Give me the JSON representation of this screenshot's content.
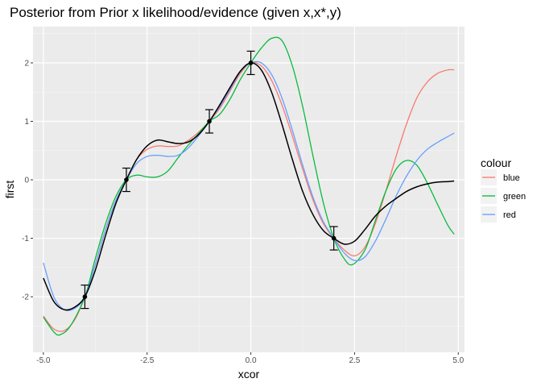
{
  "chart_data": {
    "type": "line",
    "title": "Posterior from Prior x likelihood/evidence (given x,x*,y)",
    "xlabel": "xcor",
    "ylabel": "first",
    "xlim": [
      -5.25,
      5.15
    ],
    "ylim": [
      -2.95,
      2.62
    ],
    "x_ticks": [
      -5.0,
      -2.5,
      0.0,
      2.5,
      5.0
    ],
    "x_tick_labels": [
      "-5.0",
      "-2.5",
      "0.0",
      "2.5",
      "5.0"
    ],
    "y_ticks": [
      -2,
      -1,
      0,
      1,
      2
    ],
    "y_tick_labels": [
      "-2",
      "-1",
      "0",
      "1",
      "2"
    ],
    "grid": true,
    "legend": {
      "title": "colour",
      "position": "right",
      "entries": [
        {
          "label": "blue",
          "color": "#F8766D"
        },
        {
          "label": "green",
          "color": "#00BA38"
        },
        {
          "label": "red",
          "color": "#619CFF"
        }
      ]
    },
    "series": [
      {
        "name": "blue",
        "color": "#F8766D",
        "points": [
          [
            -5.0,
            -2.33
          ],
          [
            -4.75,
            -2.55
          ],
          [
            -4.5,
            -2.58
          ],
          [
            -4.25,
            -2.4
          ],
          [
            -4.0,
            -2.0
          ],
          [
            -3.75,
            -1.45
          ],
          [
            -3.5,
            -0.85
          ],
          [
            -3.25,
            -0.35
          ],
          [
            -3.0,
            0.0
          ],
          [
            -2.75,
            0.35
          ],
          [
            -2.5,
            0.52
          ],
          [
            -2.25,
            0.58
          ],
          [
            -2.0,
            0.57
          ],
          [
            -1.75,
            0.58
          ],
          [
            -1.5,
            0.68
          ],
          [
            -1.25,
            0.82
          ],
          [
            -1.0,
            1.0
          ],
          [
            -0.75,
            1.22
          ],
          [
            -0.5,
            1.52
          ],
          [
            -0.25,
            1.82
          ],
          [
            0.0,
            2.0
          ],
          [
            0.25,
            1.95
          ],
          [
            0.5,
            1.7
          ],
          [
            0.75,
            1.28
          ],
          [
            1.0,
            0.75
          ],
          [
            1.25,
            0.18
          ],
          [
            1.5,
            -0.35
          ],
          [
            1.75,
            -0.75
          ],
          [
            2.0,
            -1.0
          ],
          [
            2.25,
            -1.2
          ],
          [
            2.5,
            -1.3
          ],
          [
            2.75,
            -1.15
          ],
          [
            3.0,
            -0.75
          ],
          [
            3.25,
            -0.2
          ],
          [
            3.5,
            0.4
          ],
          [
            3.75,
            0.95
          ],
          [
            4.0,
            1.4
          ],
          [
            4.25,
            1.67
          ],
          [
            4.5,
            1.82
          ],
          [
            4.75,
            1.88
          ],
          [
            4.9,
            1.88
          ]
        ]
      },
      {
        "name": "green",
        "color": "#00BA38",
        "points": [
          [
            -5.0,
            -2.35
          ],
          [
            -4.75,
            -2.6
          ],
          [
            -4.6,
            -2.65
          ],
          [
            -4.35,
            -2.5
          ],
          [
            -4.0,
            -2.0
          ],
          [
            -3.75,
            -1.35
          ],
          [
            -3.5,
            -0.75
          ],
          [
            -3.25,
            -0.28
          ],
          [
            -3.0,
            0.0
          ],
          [
            -2.75,
            0.08
          ],
          [
            -2.5,
            0.05
          ],
          [
            -2.25,
            0.05
          ],
          [
            -2.0,
            0.15
          ],
          [
            -1.75,
            0.38
          ],
          [
            -1.5,
            0.6
          ],
          [
            -1.25,
            0.8
          ],
          [
            -1.0,
            1.0
          ],
          [
            -0.75,
            1.12
          ],
          [
            -0.5,
            1.38
          ],
          [
            -0.25,
            1.72
          ],
          [
            0.0,
            2.0
          ],
          [
            0.25,
            2.25
          ],
          [
            0.5,
            2.42
          ],
          [
            0.75,
            2.38
          ],
          [
            1.0,
            1.95
          ],
          [
            1.25,
            1.25
          ],
          [
            1.5,
            0.4
          ],
          [
            1.75,
            -0.4
          ],
          [
            2.0,
            -1.0
          ],
          [
            2.25,
            -1.35
          ],
          [
            2.45,
            -1.45
          ],
          [
            2.75,
            -1.2
          ],
          [
            3.0,
            -0.7
          ],
          [
            3.25,
            -0.2
          ],
          [
            3.5,
            0.18
          ],
          [
            3.75,
            0.33
          ],
          [
            4.0,
            0.25
          ],
          [
            4.25,
            -0.05
          ],
          [
            4.5,
            -0.42
          ],
          [
            4.75,
            -0.78
          ],
          [
            4.9,
            -0.93
          ]
        ]
      },
      {
        "name": "red",
        "color": "#619CFF",
        "points": [
          [
            -5.0,
            -1.42
          ],
          [
            -4.75,
            -2.0
          ],
          [
            -4.5,
            -2.22
          ],
          [
            -4.25,
            -2.2
          ],
          [
            -4.0,
            -2.0
          ],
          [
            -3.75,
            -1.45
          ],
          [
            -3.5,
            -0.85
          ],
          [
            -3.25,
            -0.35
          ],
          [
            -3.0,
            0.0
          ],
          [
            -2.75,
            0.28
          ],
          [
            -2.5,
            0.4
          ],
          [
            -2.25,
            0.42
          ],
          [
            -2.0,
            0.4
          ],
          [
            -1.75,
            0.42
          ],
          [
            -1.5,
            0.55
          ],
          [
            -1.25,
            0.76
          ],
          [
            -1.0,
            1.0
          ],
          [
            -0.75,
            1.25
          ],
          [
            -0.5,
            1.55
          ],
          [
            -0.25,
            1.85
          ],
          [
            0.0,
            2.0
          ],
          [
            0.25,
            2.0
          ],
          [
            0.5,
            1.8
          ],
          [
            0.75,
            1.4
          ],
          [
            1.0,
            0.85
          ],
          [
            1.25,
            0.25
          ],
          [
            1.5,
            -0.3
          ],
          [
            1.75,
            -0.72
          ],
          [
            2.0,
            -1.0
          ],
          [
            2.25,
            -1.25
          ],
          [
            2.5,
            -1.38
          ],
          [
            2.75,
            -1.32
          ],
          [
            3.0,
            -1.05
          ],
          [
            3.25,
            -0.68
          ],
          [
            3.5,
            -0.28
          ],
          [
            3.75,
            0.06
          ],
          [
            4.0,
            0.33
          ],
          [
            4.25,
            0.52
          ],
          [
            4.5,
            0.64
          ],
          [
            4.75,
            0.74
          ],
          [
            4.9,
            0.8
          ]
        ]
      },
      {
        "color": "#000000",
        "points": [
          [
            -5.0,
            -1.68
          ],
          [
            -4.75,
            -2.08
          ],
          [
            -4.5,
            -2.22
          ],
          [
            -4.25,
            -2.18
          ],
          [
            -4.0,
            -2.0
          ],
          [
            -3.75,
            -1.55
          ],
          [
            -3.5,
            -0.95
          ],
          [
            -3.25,
            -0.4
          ],
          [
            -3.0,
            0.0
          ],
          [
            -2.75,
            0.35
          ],
          [
            -2.5,
            0.58
          ],
          [
            -2.25,
            0.68
          ],
          [
            -2.0,
            0.65
          ],
          [
            -1.75,
            0.62
          ],
          [
            -1.5,
            0.65
          ],
          [
            -1.25,
            0.78
          ],
          [
            -1.0,
            1.0
          ],
          [
            -0.75,
            1.28
          ],
          [
            -0.5,
            1.58
          ],
          [
            -0.25,
            1.86
          ],
          [
            0.0,
            2.0
          ],
          [
            0.25,
            1.88
          ],
          [
            0.5,
            1.5
          ],
          [
            0.75,
            0.95
          ],
          [
            1.0,
            0.35
          ],
          [
            1.25,
            -0.2
          ],
          [
            1.5,
            -0.6
          ],
          [
            1.75,
            -0.87
          ],
          [
            2.0,
            -1.0
          ],
          [
            2.25,
            -1.1
          ],
          [
            2.5,
            -1.05
          ],
          [
            2.75,
            -0.85
          ],
          [
            3.0,
            -0.62
          ],
          [
            3.25,
            -0.45
          ],
          [
            3.5,
            -0.32
          ],
          [
            3.75,
            -0.2
          ],
          [
            4.0,
            -0.12
          ],
          [
            4.25,
            -0.07
          ],
          [
            4.5,
            -0.04
          ],
          [
            4.75,
            -0.03
          ],
          [
            4.9,
            -0.02
          ]
        ]
      }
    ],
    "observations": {
      "color": "#000000",
      "points": [
        {
          "x": -4.0,
          "y": -2.0,
          "ymin": -2.2,
          "ymax": -1.8
        },
        {
          "x": -3.0,
          "y": 0.0,
          "ymin": -0.2,
          "ymax": 0.2
        },
        {
          "x": -1.0,
          "y": 1.0,
          "ymin": 0.8,
          "ymax": 1.2
        },
        {
          "x": 0.0,
          "y": 2.0,
          "ymin": 1.8,
          "ymax": 2.2
        },
        {
          "x": 2.0,
          "y": -1.0,
          "ymin": -1.2,
          "ymax": -0.8
        }
      ]
    }
  }
}
